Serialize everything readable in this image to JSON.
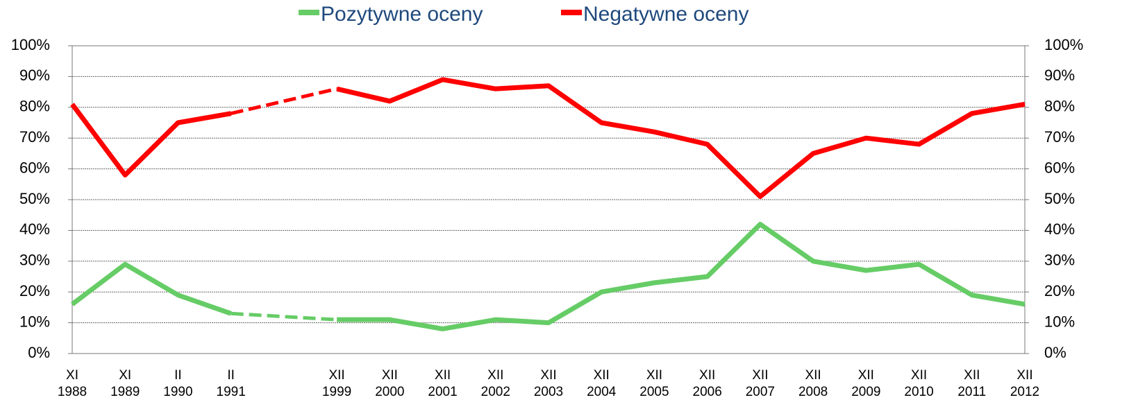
{
  "chart_data": {
    "type": "line",
    "categories": [
      "XI\n1988",
      "XI\n1989",
      "II\n1990",
      "II\n1991",
      null,
      "XII\n1999",
      "XII\n2000",
      "XII\n2001",
      "XII\n2002",
      "XII\n2003",
      "XII\n2004",
      "XII\n2005",
      "XII\n2006",
      "XII\n2007",
      "XII\n2008",
      "XII\n2009",
      "XII\n2010",
      "XII\n2011",
      "XII\n2012"
    ],
    "series": [
      {
        "name": "Pozytywne oceny",
        "color": "#66cc66",
        "values": [
          16,
          29,
          19,
          13,
          null,
          11,
          11,
          8,
          11,
          10,
          20,
          23,
          25,
          42,
          30,
          27,
          29,
          19,
          16
        ]
      },
      {
        "name": "Negatywne oceny",
        "color": "#ff0000",
        "values": [
          81,
          58,
          75,
          78,
          null,
          86,
          82,
          89,
          86,
          87,
          75,
          72,
          68,
          51,
          65,
          70,
          68,
          78,
          81
        ]
      }
    ],
    "ylim": [
      0,
      100
    ],
    "yticks": [
      {
        "value": 0,
        "label": "0%"
      },
      {
        "value": 10,
        "label": "10%"
      },
      {
        "value": 20,
        "label": "20%"
      },
      {
        "value": 30,
        "label": "30%"
      },
      {
        "value": 40,
        "label": "40%"
      },
      {
        "value": 50,
        "label": "50%"
      },
      {
        "value": 60,
        "label": "60%"
      },
      {
        "value": 70,
        "label": "70%"
      },
      {
        "value": 80,
        "label": "80%"
      },
      {
        "value": 90,
        "label": "90%"
      },
      {
        "value": 100,
        "label": "100%"
      }
    ],
    "y2lim": [
      0,
      100
    ],
    "y2ticks": [
      {
        "value": 0,
        "label": "0%"
      },
      {
        "value": 10,
        "label": "10%"
      },
      {
        "value": 20,
        "label": "20%"
      },
      {
        "value": 30,
        "label": "30%"
      },
      {
        "value": 40,
        "label": "40%"
      },
      {
        "value": 50,
        "label": "50%"
      },
      {
        "value": 60,
        "label": "60%"
      },
      {
        "value": 70,
        "label": "70%"
      },
      {
        "value": 80,
        "label": "80%"
      },
      {
        "value": 90,
        "label": "90%"
      },
      {
        "value": 100,
        "label": "100%"
      }
    ],
    "grid": true,
    "legend": "top"
  }
}
